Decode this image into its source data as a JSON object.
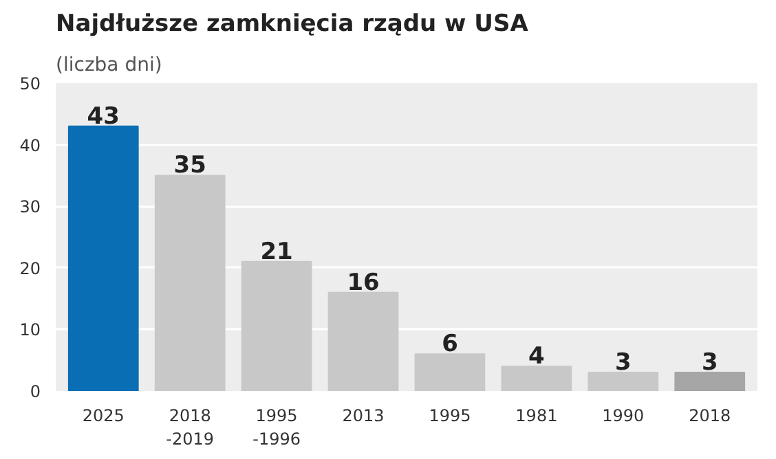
{
  "chart_data": {
    "type": "bar",
    "title": "Najdłuższe zamknięcia rządu w USA",
    "subtitle": "(liczba dni)",
    "categories": [
      "2025",
      "2018\n-2019",
      "1995\n-1996",
      "2013",
      "1995",
      "1981",
      "1990",
      "2018"
    ],
    "values": [
      43,
      35,
      21,
      16,
      6,
      4,
      3,
      3
    ],
    "colors": [
      "#0a6eb4",
      "#c8c8c8",
      "#c8c8c8",
      "#c8c8c8",
      "#c8c8c8",
      "#c8c8c8",
      "#c8c8c8",
      "#a6a6a6"
    ],
    "ylim": [
      0,
      50
    ],
    "yticks": [
      0,
      10,
      20,
      30,
      40,
      50
    ],
    "grid": "y",
    "data_labels": true
  }
}
